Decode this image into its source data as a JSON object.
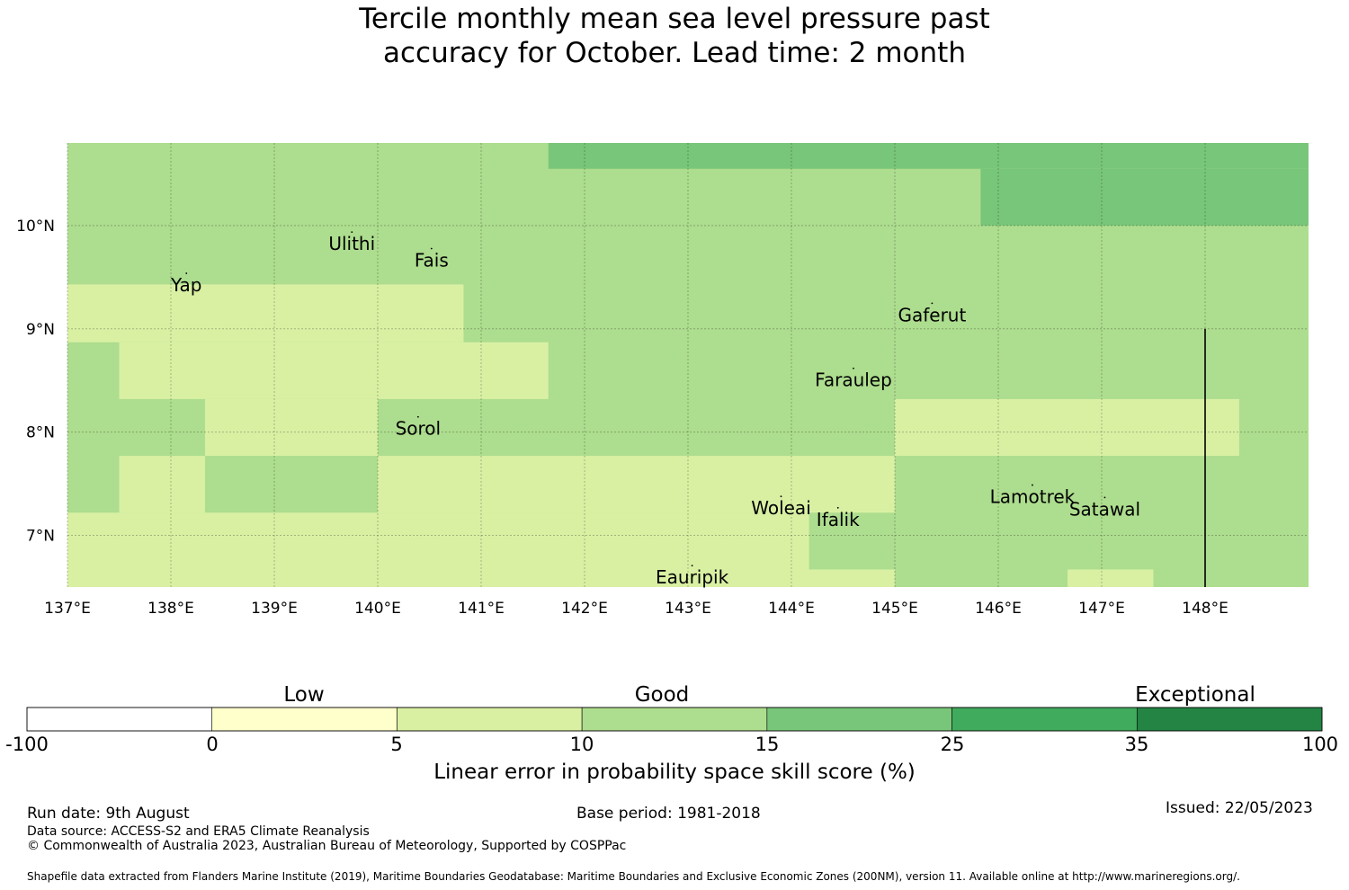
{
  "title_line1": "Tercile monthly mean sea level pressure past",
  "title_line2": "accuracy for October. Lead time: 2 month",
  "map": {
    "lon_range": [
      137,
      149
    ],
    "lat_range": [
      6.5,
      10.8
    ],
    "lon_ticks": [
      {
        "value": 137,
        "label": "137°E"
      },
      {
        "value": 138,
        "label": "138°E"
      },
      {
        "value": 139,
        "label": "139°E"
      },
      {
        "value": 140,
        "label": "140°E"
      },
      {
        "value": 141,
        "label": "141°E"
      },
      {
        "value": 142,
        "label": "142°E"
      },
      {
        "value": 143,
        "label": "143°E"
      },
      {
        "value": 144,
        "label": "144°E"
      },
      {
        "value": 145,
        "label": "145°E"
      },
      {
        "value": 146,
        "label": "146°E"
      },
      {
        "value": 147,
        "label": "147°E"
      },
      {
        "value": 148,
        "label": "148°E"
      }
    ],
    "lat_ticks": [
      {
        "value": 10,
        "label": "10°N"
      },
      {
        "value": 9,
        "label": "9°N"
      },
      {
        "value": 8,
        "label": "8°N"
      },
      {
        "value": 7,
        "label": "7°N"
      }
    ],
    "regions": [
      {
        "lon": [
          137,
          149
        ],
        "lat": [
          6.5,
          10.8
        ],
        "color": "#addd8e"
      },
      {
        "lon": [
          141.65,
          149
        ],
        "lat": [
          10.55,
          10.8
        ],
        "color": "#78c679"
      },
      {
        "lon": [
          145.83,
          149
        ],
        "lat": [
          10.0,
          10.55
        ],
        "color": "#78c679"
      },
      {
        "lon": [
          137,
          140.83
        ],
        "lat": [
          8.87,
          9.43
        ],
        "color": "#d9f0a3"
      },
      {
        "lon": [
          137.5,
          141.65
        ],
        "lat": [
          8.32,
          8.87
        ],
        "color": "#d9f0a3"
      },
      {
        "lon": [
          138.33,
          140.0
        ],
        "lat": [
          7.77,
          8.32
        ],
        "color": "#d9f0a3"
      },
      {
        "lon": [
          137.5,
          138.33
        ],
        "lat": [
          7.22,
          7.77
        ],
        "color": "#d9f0a3"
      },
      {
        "lon": [
          140.0,
          145.0
        ],
        "lat": [
          7.22,
          7.77
        ],
        "color": "#d9f0a3"
      },
      {
        "lon": [
          137,
          140.0
        ],
        "lat": [
          6.5,
          7.22
        ],
        "color": "#d9f0a3"
      },
      {
        "lon": [
          140.0,
          144.17
        ],
        "lat": [
          6.67,
          7.22
        ],
        "color": "#d9f0a3"
      },
      {
        "lon": [
          140.0,
          145.0
        ],
        "lat": [
          6.5,
          6.67
        ],
        "color": "#d9f0a3"
      },
      {
        "lon": [
          145.0,
          148.33
        ],
        "lat": [
          7.77,
          8.32
        ],
        "color": "#d9f0a3"
      },
      {
        "lon": [
          146.67,
          147.5
        ],
        "lat": [
          6.5,
          6.67
        ],
        "color": "#d9f0a3"
      }
    ],
    "places": [
      {
        "name": "Ulithi",
        "lon": 139.75,
        "lat": 9.92
      },
      {
        "name": "Fais",
        "lon": 140.52,
        "lat": 9.76
      },
      {
        "name": "Yap",
        "lon": 138.15,
        "lat": 9.52
      },
      {
        "name": "Gaferut",
        "lon": 145.36,
        "lat": 9.23
      },
      {
        "name": "Faraulep",
        "lon": 144.6,
        "lat": 8.6
      },
      {
        "name": "Sorol",
        "lon": 140.39,
        "lat": 8.13
      },
      {
        "name": "Woleai",
        "lon": 143.9,
        "lat": 7.36
      },
      {
        "name": "Ifalik",
        "lon": 144.45,
        "lat": 7.25
      },
      {
        "name": "Lamotrek",
        "lon": 146.33,
        "lat": 7.47
      },
      {
        "name": "Satawal",
        "lon": 147.03,
        "lat": 7.35
      },
      {
        "name": "Eauripik",
        "lon": 143.04,
        "lat": 6.69
      }
    ],
    "boundary_line": {
      "lon": 148.0,
      "lat": [
        6.5,
        9.0
      ]
    }
  },
  "colorbar": {
    "ticks": [
      "-100",
      "0",
      "5",
      "10",
      "15",
      "25",
      "35",
      "100"
    ],
    "colors": [
      "#ffffff",
      "#ffffcc",
      "#d9f0a3",
      "#addd8e",
      "#78c679",
      "#41ab5d",
      "#238443"
    ],
    "categories": [
      "Low",
      "Good",
      "Exceptional"
    ],
    "label": "Linear error in probability space skill score (%)"
  },
  "footer": {
    "run_date": "Run date: 9th August",
    "base_period": "Base period: 1981-2018",
    "issued": "Issued: 22/05/2023",
    "data_source": "Data source: ACCESS-S2 and ERA5 Climate Reanalysis",
    "copyright": "© Commonwealth of Australia 2023, Australian Bureau of Meteorology, Supported by COSPPac",
    "shapefile": "Shapefile data extracted from Flanders Marine Institute (2019), Maritime Boundaries Geodatabase: Maritime Boundaries and Exclusive Economic Zones (200NM), version 11. Available online at http://www.marineregions.org/."
  }
}
